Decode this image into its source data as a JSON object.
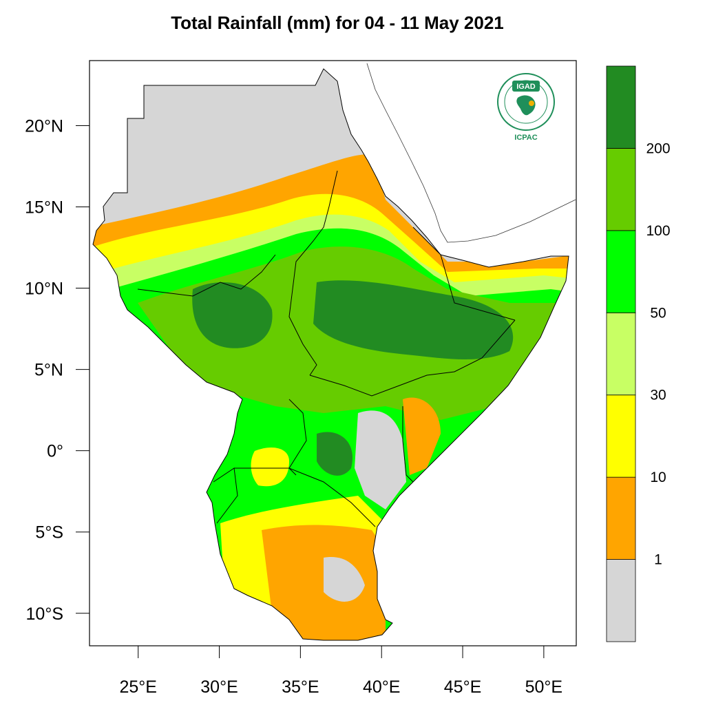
{
  "title": "Total Rainfall (mm) for 04 - 11 May 2021",
  "map": {
    "lon_range": [
      22,
      52
    ],
    "lat_range": [
      -12,
      24
    ],
    "lat_ticks": [
      {
        "value": 20,
        "label": "20°N"
      },
      {
        "value": 15,
        "label": "15°N"
      },
      {
        "value": 10,
        "label": "10°N"
      },
      {
        "value": 5,
        "label": "5°N"
      },
      {
        "value": 0,
        "label": "0°"
      },
      {
        "value": -5,
        "label": "5°S"
      },
      {
        "value": -10,
        "label": "10°S"
      }
    ],
    "lon_ticks": [
      {
        "value": 25,
        "label": "25°E"
      },
      {
        "value": 30,
        "label": "30°E"
      },
      {
        "value": 35,
        "label": "35°E"
      },
      {
        "value": 40,
        "label": "40°E"
      },
      {
        "value": 45,
        "label": "45°E"
      },
      {
        "value": 50,
        "label": "50°E"
      }
    ]
  },
  "colorbar": {
    "bins": [
      {
        "color": "#d6d6d6",
        "label": "1"
      },
      {
        "color": "#ffa500",
        "label": "10"
      },
      {
        "color": "#ffff00",
        "label": "30"
      },
      {
        "color": "#c8ff64",
        "label": "50"
      },
      {
        "color": "#00ff00",
        "label": "100"
      },
      {
        "color": "#66cc00",
        "label": "200"
      },
      {
        "color": "#228b22",
        "label": ""
      }
    ]
  },
  "logo": {
    "name": "IGAD",
    "subtitle": "ICPAC"
  },
  "colors": {
    "no_rain": "#d6d6d6",
    "orange": "#ffa500",
    "yellow": "#ffff00",
    "light_green": "#c8ff64",
    "green": "#00ff00",
    "mid_green": "#66cc00",
    "dark_green": "#228b22"
  }
}
